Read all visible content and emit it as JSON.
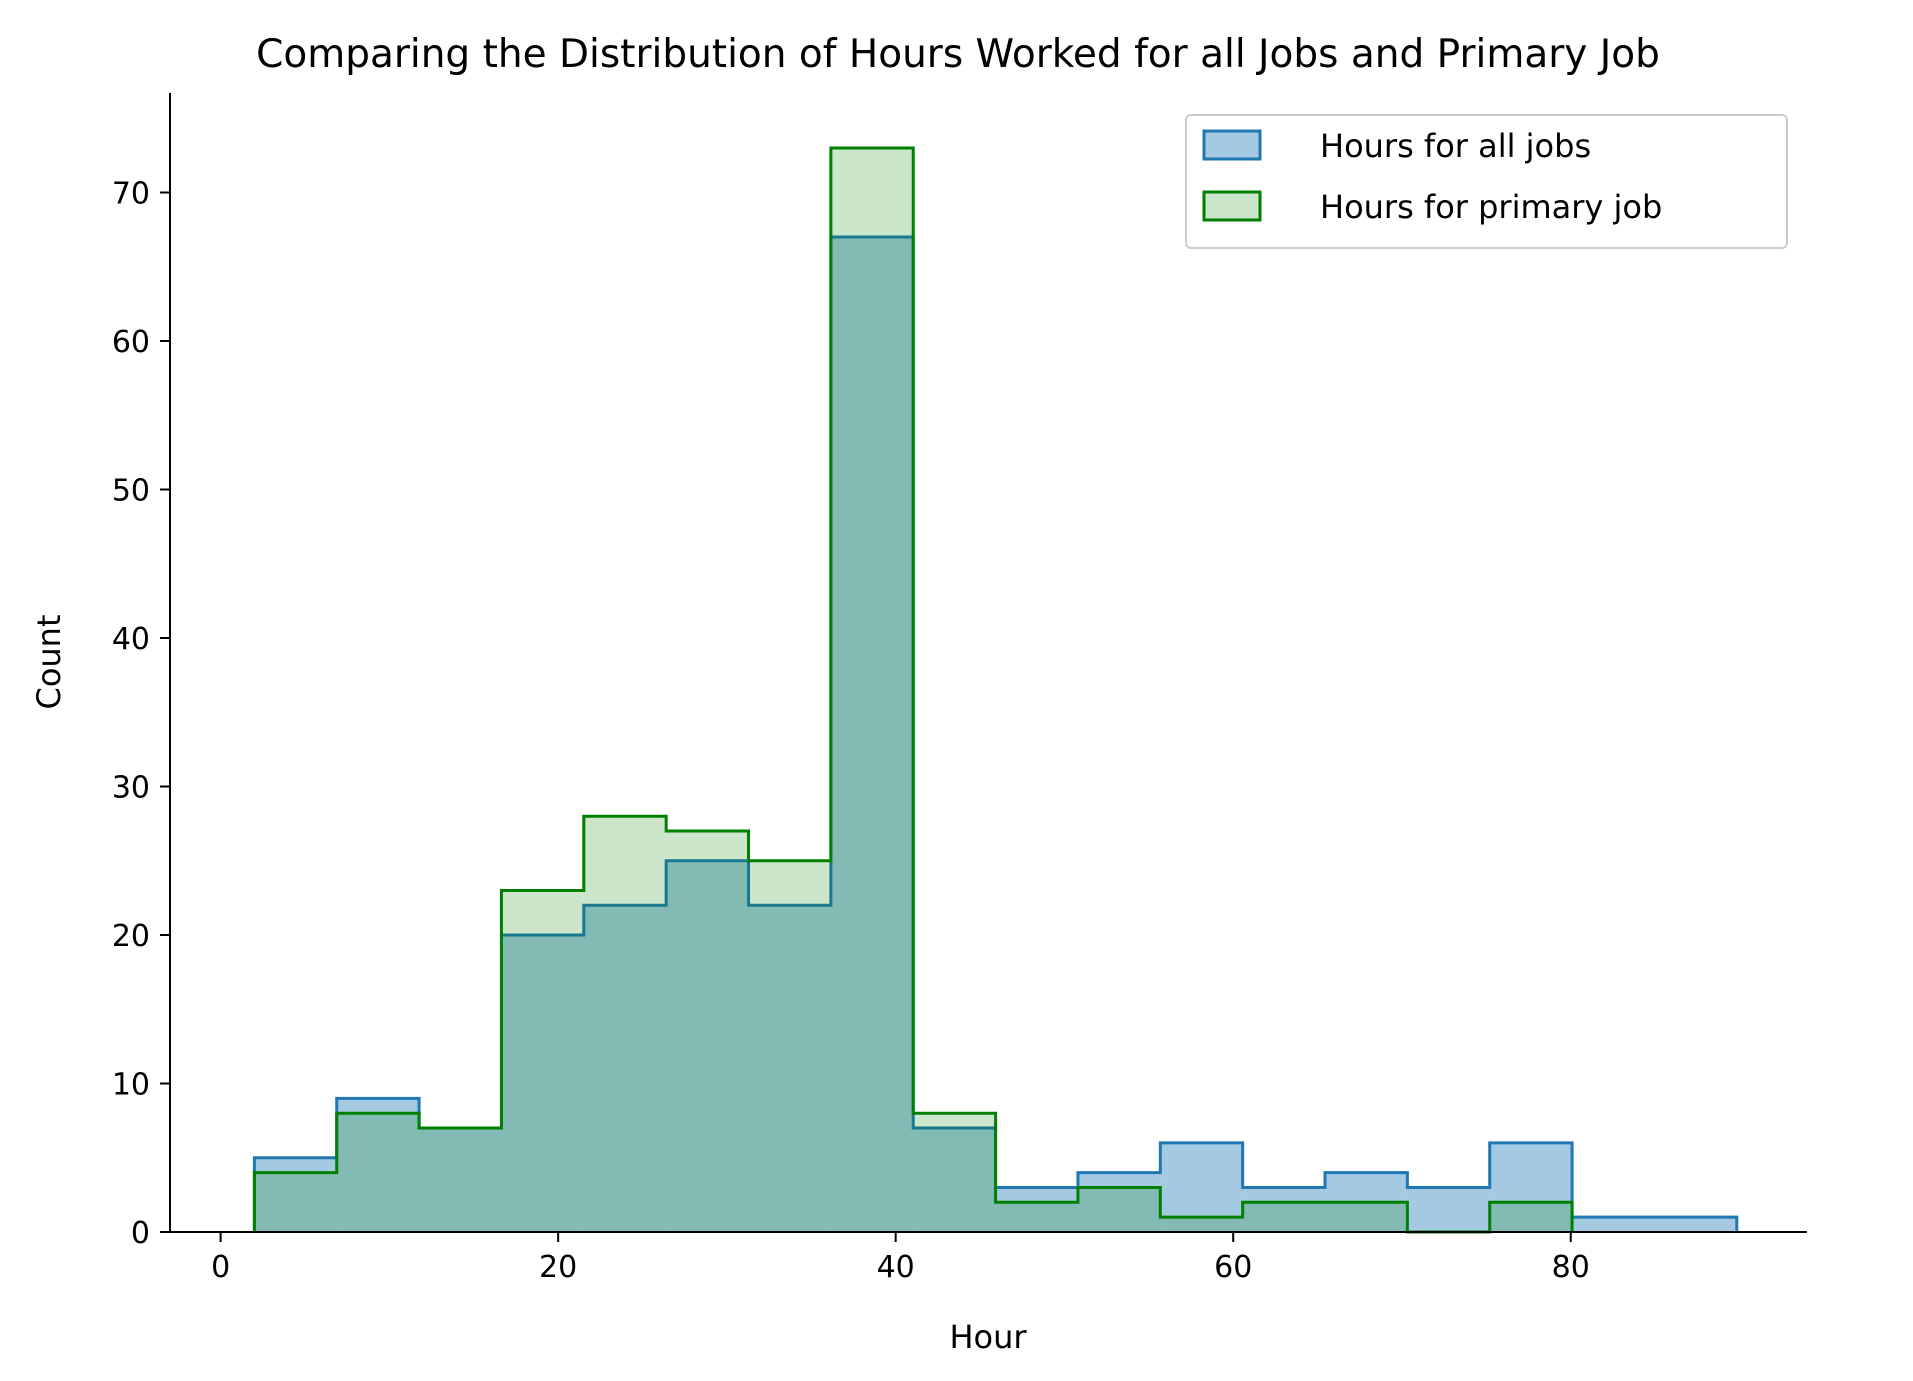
{
  "chart_data": {
    "type": "histogram-step",
    "title": "Comparing the Distribution of Hours Worked for all Jobs and Primary Job",
    "xlabel": "Hour",
    "ylabel": "Count",
    "xlim": [
      -3,
      94
    ],
    "ylim": [
      0,
      76.7
    ],
    "xticks": [
      0,
      20,
      40,
      60,
      80
    ],
    "yticks": [
      0,
      10,
      20,
      30,
      40,
      50,
      60,
      70
    ],
    "grid": false,
    "legend_position": "top-right",
    "series": [
      {
        "name": "Hours for all jobs",
        "edges": [
          2,
          6.88,
          11.76,
          16.64,
          21.52,
          26.4,
          31.28,
          36.16,
          41.04,
          45.92,
          50.8,
          55.68,
          60.56,
          65.44,
          70.32,
          75.2,
          80.08,
          84.96,
          89.84
        ],
        "counts": [
          5,
          9,
          7,
          20,
          22,
          25,
          22,
          67,
          7,
          3,
          4,
          6,
          3,
          4,
          3,
          6,
          1,
          1
        ],
        "stroke": "#1f77b4",
        "fill": "#1f77b4",
        "fill_opacity": 0.4
      },
      {
        "name": "Hours for primary job",
        "edges": [
          2,
          6.88,
          11.76,
          16.64,
          21.52,
          26.4,
          31.28,
          36.16,
          41.04,
          45.92,
          50.8,
          55.68,
          60.56,
          65.44,
          70.32,
          75.2,
          80.08
        ],
        "counts": [
          4,
          8,
          7,
          23,
          28,
          27,
          25,
          73,
          8,
          2,
          3,
          1,
          2,
          2,
          0,
          2
        ],
        "stroke": "#008000",
        "fill": "#008000",
        "fill_opacity": 0.2
      }
    ]
  }
}
